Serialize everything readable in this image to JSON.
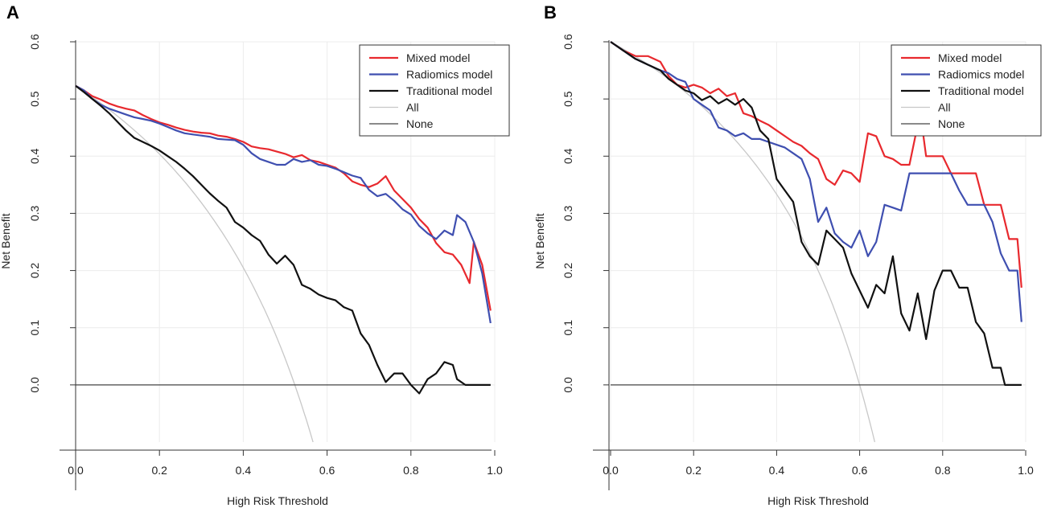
{
  "chart_data": [
    {
      "panel": "A",
      "type": "line",
      "title": "",
      "xlabel": "High Risk Threshold",
      "ylabel": "Net Benefit",
      "xlim": [
        0.0,
        1.0
      ],
      "ylim": [
        -0.1,
        0.6
      ],
      "xticks": [
        "0.0",
        "0.2",
        "0.4",
        "0.6",
        "0.8",
        "1.0"
      ],
      "yticks": [
        "0.0",
        "0.1",
        "0.2",
        "0.3",
        "0.4",
        "0.5",
        "0.6"
      ],
      "grid": true,
      "legend_position": "top-right",
      "series": [
        {
          "name": "Mixed model",
          "color": "#e8292e",
          "x": [
            0.0,
            0.02,
            0.04,
            0.06,
            0.08,
            0.1,
            0.12,
            0.14,
            0.16,
            0.18,
            0.2,
            0.22,
            0.24,
            0.26,
            0.28,
            0.3,
            0.32,
            0.34,
            0.36,
            0.38,
            0.4,
            0.42,
            0.44,
            0.46,
            0.48,
            0.5,
            0.52,
            0.54,
            0.56,
            0.58,
            0.6,
            0.62,
            0.64,
            0.66,
            0.68,
            0.7,
            0.72,
            0.74,
            0.76,
            0.78,
            0.8,
            0.82,
            0.84,
            0.86,
            0.88,
            0.9,
            0.92,
            0.94,
            0.95,
            0.97,
            0.99
          ],
          "y": [
            0.523,
            0.515,
            0.505,
            0.499,
            0.492,
            0.487,
            0.483,
            0.48,
            0.472,
            0.465,
            0.459,
            0.455,
            0.45,
            0.446,
            0.443,
            0.441,
            0.44,
            0.436,
            0.434,
            0.43,
            0.425,
            0.417,
            0.414,
            0.412,
            0.408,
            0.404,
            0.398,
            0.402,
            0.393,
            0.39,
            0.385,
            0.38,
            0.37,
            0.356,
            0.35,
            0.346,
            0.352,
            0.365,
            0.34,
            0.325,
            0.31,
            0.29,
            0.275,
            0.248,
            0.232,
            0.228,
            0.21,
            0.178,
            0.25,
            0.21,
            0.13
          ]
        },
        {
          "name": "Radiomics model",
          "color": "#3f4fb0",
          "x": [
            0.0,
            0.02,
            0.04,
            0.06,
            0.08,
            0.1,
            0.12,
            0.14,
            0.16,
            0.18,
            0.2,
            0.22,
            0.24,
            0.26,
            0.28,
            0.3,
            0.32,
            0.34,
            0.36,
            0.38,
            0.4,
            0.42,
            0.44,
            0.46,
            0.48,
            0.5,
            0.52,
            0.54,
            0.56,
            0.58,
            0.6,
            0.62,
            0.64,
            0.66,
            0.68,
            0.7,
            0.72,
            0.74,
            0.76,
            0.78,
            0.8,
            0.82,
            0.84,
            0.86,
            0.88,
            0.9,
            0.91,
            0.93,
            0.95,
            0.97,
            0.99
          ],
          "y": [
            0.523,
            0.515,
            0.5,
            0.49,
            0.483,
            0.478,
            0.473,
            0.468,
            0.465,
            0.462,
            0.457,
            0.451,
            0.445,
            0.44,
            0.438,
            0.436,
            0.434,
            0.43,
            0.429,
            0.428,
            0.42,
            0.405,
            0.395,
            0.39,
            0.385,
            0.385,
            0.395,
            0.39,
            0.393,
            0.385,
            0.383,
            0.378,
            0.372,
            0.366,
            0.362,
            0.341,
            0.33,
            0.334,
            0.322,
            0.307,
            0.298,
            0.278,
            0.265,
            0.255,
            0.27,
            0.262,
            0.297,
            0.285,
            0.25,
            0.195,
            0.108
          ]
        },
        {
          "name": "Traditional model",
          "color": "#111111",
          "x": [
            0.0,
            0.02,
            0.04,
            0.06,
            0.08,
            0.1,
            0.12,
            0.14,
            0.16,
            0.18,
            0.2,
            0.22,
            0.24,
            0.26,
            0.28,
            0.3,
            0.32,
            0.34,
            0.36,
            0.38,
            0.4,
            0.42,
            0.44,
            0.46,
            0.48,
            0.5,
            0.52,
            0.54,
            0.56,
            0.58,
            0.6,
            0.62,
            0.64,
            0.66,
            0.68,
            0.7,
            0.72,
            0.74,
            0.76,
            0.78,
            0.8,
            0.82,
            0.84,
            0.86,
            0.88,
            0.9,
            0.91,
            0.93,
            0.95,
            0.97,
            0.99
          ],
          "y": [
            0.523,
            0.512,
            0.5,
            0.488,
            0.475,
            0.46,
            0.445,
            0.432,
            0.425,
            0.418,
            0.41,
            0.4,
            0.39,
            0.378,
            0.365,
            0.35,
            0.335,
            0.322,
            0.31,
            0.285,
            0.275,
            0.262,
            0.252,
            0.228,
            0.212,
            0.226,
            0.21,
            0.175,
            0.168,
            0.158,
            0.152,
            0.148,
            0.136,
            0.13,
            0.09,
            0.07,
            0.035,
            0.005,
            0.02,
            0.02,
            0.0,
            -0.015,
            0.01,
            0.02,
            0.04,
            0.035,
            0.01,
            0.0,
            0.0,
            0.0,
            0.0
          ]
        },
        {
          "name": "All",
          "color": "#c8c8c8",
          "curve": "treat-all",
          "prevalence": 0.523
        },
        {
          "name": "None",
          "color": "#444444",
          "y_constant": 0.0
        }
      ]
    },
    {
      "panel": "B",
      "type": "line",
      "title": "",
      "xlabel": "High Risk Threshold",
      "ylabel": "Net Benefit",
      "xlim": [
        0.0,
        1.0
      ],
      "ylim": [
        -0.1,
        0.6
      ],
      "xticks": [
        "0.0",
        "0.2",
        "0.4",
        "0.6",
        "0.8",
        "1.0"
      ],
      "yticks": [
        "0.0",
        "0.1",
        "0.2",
        "0.3",
        "0.4",
        "0.5",
        "0.6"
      ],
      "grid": true,
      "legend_position": "top-right",
      "series": [
        {
          "name": "Mixed model",
          "color": "#e8292e",
          "x": [
            0.0,
            0.03,
            0.06,
            0.09,
            0.12,
            0.14,
            0.16,
            0.18,
            0.2,
            0.22,
            0.24,
            0.26,
            0.28,
            0.3,
            0.32,
            0.34,
            0.36,
            0.38,
            0.4,
            0.42,
            0.44,
            0.46,
            0.48,
            0.5,
            0.52,
            0.54,
            0.56,
            0.58,
            0.6,
            0.62,
            0.64,
            0.66,
            0.68,
            0.7,
            0.72,
            0.74,
            0.75,
            0.76,
            0.78,
            0.8,
            0.82,
            0.84,
            0.86,
            0.88,
            0.9,
            0.92,
            0.94,
            0.96,
            0.98,
            0.99
          ],
          "y": [
            0.6,
            0.585,
            0.575,
            0.575,
            0.565,
            0.54,
            0.525,
            0.52,
            0.525,
            0.52,
            0.51,
            0.518,
            0.505,
            0.51,
            0.475,
            0.47,
            0.462,
            0.455,
            0.445,
            0.435,
            0.425,
            0.418,
            0.405,
            0.395,
            0.36,
            0.35,
            0.375,
            0.37,
            0.355,
            0.44,
            0.435,
            0.4,
            0.395,
            0.385,
            0.385,
            0.455,
            0.455,
            0.4,
            0.4,
            0.4,
            0.37,
            0.37,
            0.37,
            0.37,
            0.315,
            0.315,
            0.315,
            0.255,
            0.255,
            0.17
          ]
        },
        {
          "name": "Radiomics model",
          "color": "#3f4fb0",
          "x": [
            0.0,
            0.03,
            0.06,
            0.09,
            0.12,
            0.14,
            0.16,
            0.18,
            0.2,
            0.22,
            0.24,
            0.26,
            0.28,
            0.3,
            0.32,
            0.34,
            0.36,
            0.38,
            0.4,
            0.42,
            0.44,
            0.46,
            0.48,
            0.5,
            0.52,
            0.54,
            0.56,
            0.58,
            0.6,
            0.62,
            0.64,
            0.66,
            0.68,
            0.7,
            0.72,
            0.74,
            0.76,
            0.78,
            0.8,
            0.82,
            0.84,
            0.86,
            0.88,
            0.9,
            0.92,
            0.94,
            0.96,
            0.98,
            0.99
          ],
          "y": [
            0.6,
            0.585,
            0.57,
            0.56,
            0.55,
            0.545,
            0.535,
            0.53,
            0.5,
            0.49,
            0.48,
            0.45,
            0.445,
            0.435,
            0.44,
            0.43,
            0.43,
            0.425,
            0.42,
            0.415,
            0.405,
            0.395,
            0.36,
            0.285,
            0.31,
            0.265,
            0.25,
            0.24,
            0.27,
            0.225,
            0.25,
            0.315,
            0.31,
            0.305,
            0.37,
            0.37,
            0.37,
            0.37,
            0.37,
            0.37,
            0.34,
            0.315,
            0.315,
            0.315,
            0.285,
            0.23,
            0.2,
            0.2,
            0.11
          ]
        },
        {
          "name": "Traditional model",
          "color": "#111111",
          "x": [
            0.0,
            0.03,
            0.06,
            0.09,
            0.12,
            0.14,
            0.16,
            0.18,
            0.2,
            0.22,
            0.24,
            0.26,
            0.28,
            0.3,
            0.32,
            0.34,
            0.36,
            0.38,
            0.4,
            0.42,
            0.44,
            0.46,
            0.48,
            0.5,
            0.52,
            0.54,
            0.56,
            0.58,
            0.6,
            0.62,
            0.64,
            0.66,
            0.68,
            0.7,
            0.72,
            0.74,
            0.76,
            0.78,
            0.8,
            0.82,
            0.84,
            0.86,
            0.88,
            0.9,
            0.92,
            0.94,
            0.95,
            0.97,
            0.99
          ],
          "y": [
            0.6,
            0.585,
            0.57,
            0.56,
            0.55,
            0.535,
            0.525,
            0.515,
            0.51,
            0.498,
            0.505,
            0.492,
            0.5,
            0.49,
            0.5,
            0.485,
            0.445,
            0.43,
            0.36,
            0.34,
            0.32,
            0.25,
            0.225,
            0.21,
            0.27,
            0.255,
            0.24,
            0.195,
            0.165,
            0.135,
            0.175,
            0.16,
            0.225,
            0.125,
            0.095,
            0.16,
            0.08,
            0.165,
            0.2,
            0.2,
            0.17,
            0.17,
            0.11,
            0.09,
            0.03,
            0.03,
            0.0,
            0.0,
            0.0
          ]
        },
        {
          "name": "All",
          "color": "#c8c8c8",
          "curve": "treat-all",
          "prevalence": 0.6
        },
        {
          "name": "None",
          "color": "#444444",
          "y_constant": 0.0
        }
      ]
    }
  ]
}
